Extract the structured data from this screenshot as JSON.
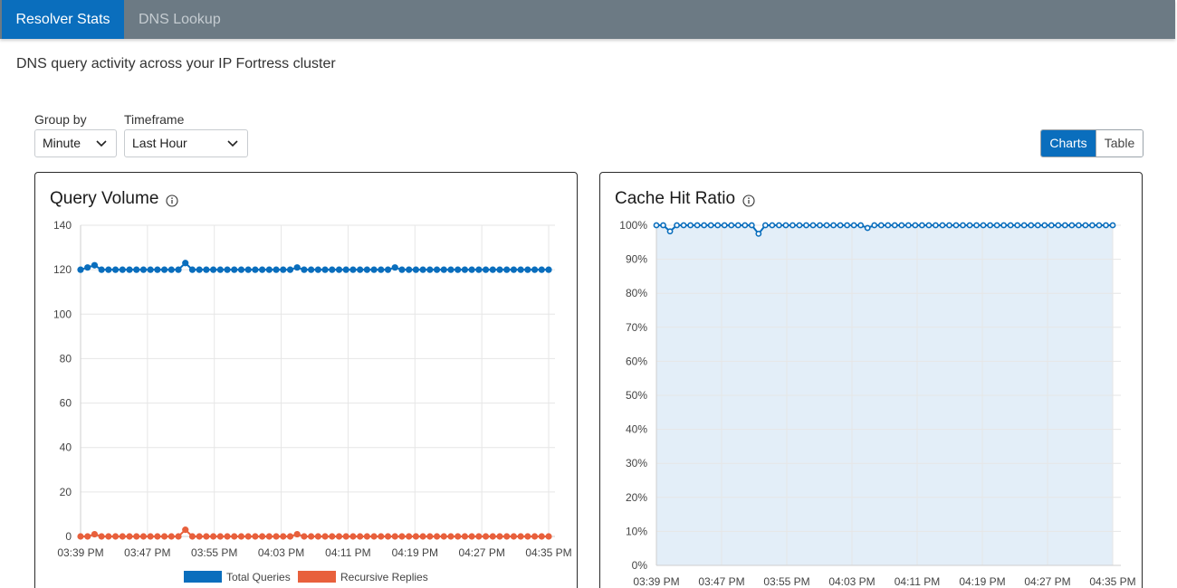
{
  "tabs": [
    {
      "label": "Resolver Stats",
      "active": true
    },
    {
      "label": "DNS Lookup",
      "active": false
    }
  ],
  "subtitle": "DNS query activity across your IP Fortress cluster",
  "controls": {
    "group_by": {
      "label": "Group by",
      "value": "Minute"
    },
    "timeframe": {
      "label": "Timeframe",
      "value": "Last Hour"
    },
    "view_toggle": {
      "options": [
        "Charts",
        "Table"
      ],
      "selected": "Charts"
    }
  },
  "colors": {
    "accent": "#0a6ebd",
    "total_queries": "#0a6ebd",
    "recursive_replies": "#e8603c",
    "cache_fill": "#e3eef8"
  },
  "icons": {
    "info": "info-circle-icon",
    "dropdown": "chevron-down-icon"
  },
  "chart_data": [
    {
      "type": "line",
      "title": "Query Volume",
      "xlabel": "",
      "ylabel": "",
      "ylim": [
        0,
        140
      ],
      "yticks": [
        "0",
        "20",
        "40",
        "60",
        "80",
        "100",
        "120",
        "140"
      ],
      "xtick_labels": [
        "03:39 PM",
        "03:47 PM",
        "03:55 PM",
        "04:03 PM",
        "04:11 PM",
        "04:19 PM",
        "04:27 PM",
        "04:35 PM"
      ],
      "legend_position": "bottom",
      "series": [
        {
          "name": "Total Queries",
          "values": [
            120,
            121,
            122,
            120,
            120,
            120,
            120,
            120,
            120,
            120,
            120,
            120,
            120,
            120,
            120,
            123,
            120,
            120,
            120,
            120,
            120,
            120,
            120,
            120,
            120,
            120,
            120,
            120,
            120,
            120,
            120,
            121,
            120,
            120,
            120,
            120,
            120,
            120,
            120,
            120,
            120,
            120,
            120,
            120,
            120,
            121,
            120,
            120,
            120,
            120,
            120,
            120,
            120,
            120,
            120,
            120,
            120,
            120,
            120,
            120,
            120,
            120,
            120,
            120,
            120,
            120,
            120,
            120
          ]
        },
        {
          "name": "Recursive Replies",
          "values": [
            0,
            0,
            1,
            0,
            0,
            0,
            0,
            0,
            0,
            0,
            0,
            0,
            0,
            0,
            0,
            3,
            0,
            0,
            0,
            0,
            0,
            0,
            0,
            0,
            0,
            0,
            0,
            0,
            0,
            0,
            0,
            1,
            0,
            0,
            0,
            0,
            0,
            0,
            0,
            0,
            0,
            0,
            0,
            0,
            0,
            0,
            0,
            0,
            0,
            0,
            0,
            0,
            0,
            0,
            0,
            0,
            0,
            0,
            0,
            0,
            0,
            0,
            0,
            0,
            0,
            0,
            0,
            0
          ]
        }
      ]
    },
    {
      "type": "area",
      "title": "Cache Hit Ratio",
      "xlabel": "",
      "ylabel": "",
      "ylim": [
        0,
        100
      ],
      "yticks": [
        "0%",
        "10%",
        "20%",
        "30%",
        "40%",
        "50%",
        "60%",
        "70%",
        "80%",
        "90%",
        "100%"
      ],
      "xtick_labels": [
        "03:39 PM",
        "03:47 PM",
        "03:55 PM",
        "04:03 PM",
        "04:11 PM",
        "04:19 PM",
        "04:27 PM",
        "04:35 PM"
      ],
      "series": [
        {
          "values": [
            100,
            100,
            98.2,
            100,
            100,
            100,
            100,
            100,
            100,
            100,
            100,
            100,
            100,
            100,
            100,
            97.5,
            100,
            100,
            100,
            100,
            100,
            100,
            100,
            100,
            100,
            100,
            100,
            100,
            100,
            100,
            100,
            99.2,
            100,
            100,
            100,
            100,
            100,
            100,
            100,
            100,
            100,
            100,
            100,
            100,
            100,
            100,
            100,
            100,
            100,
            100,
            100,
            100,
            100,
            100,
            100,
            100,
            100,
            100,
            100,
            100,
            100,
            100,
            100,
            100,
            100,
            100,
            100,
            100
          ]
        }
      ]
    }
  ]
}
